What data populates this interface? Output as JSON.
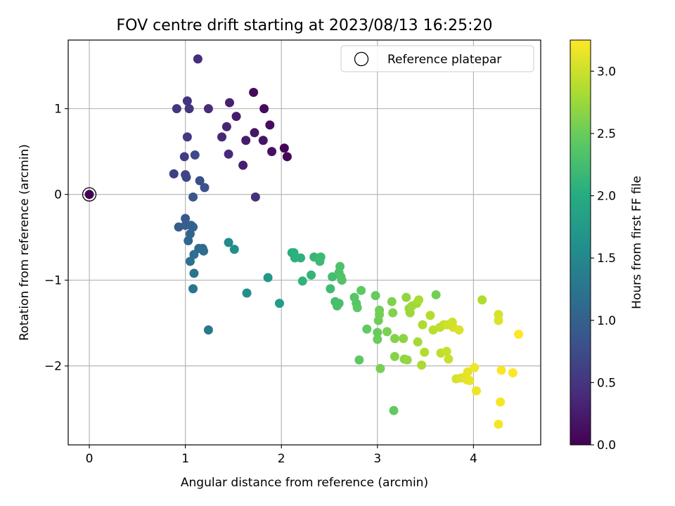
{
  "chart_data": {
    "type": "scatter",
    "title": "FOV centre drift starting at 2023/08/13 16:25:20",
    "xlabel": "Angular distance from reference (arcmin)",
    "ylabel": "Rotation from reference (arcmin)",
    "xlim": [
      -0.22,
      4.7
    ],
    "ylim": [
      -2.92,
      1.8
    ],
    "xticks": [
      0,
      1,
      2,
      3,
      4
    ],
    "yticks": [
      -2,
      -1,
      0,
      1
    ],
    "xtick_labels": [
      "0",
      "1",
      "2",
      "3",
      "4"
    ],
    "ytick_labels": [
      "−2",
      "−1",
      "0",
      "1"
    ],
    "grid": true,
    "legend": {
      "position": "top-right",
      "entries": [
        "Reference platepar"
      ]
    },
    "colorbar": {
      "label": "Hours from first FF file",
      "range": [
        0.0,
        3.25
      ],
      "ticks": [
        0.0,
        0.5,
        1.0,
        1.5,
        2.0,
        2.5,
        3.0
      ],
      "tick_labels": [
        "0.0",
        "0.5",
        "1.0",
        "1.5",
        "2.0",
        "2.5",
        "3.0"
      ],
      "colormap": "viridis"
    },
    "reference_point": {
      "x": 0,
      "y": 0,
      "c": 0.0
    },
    "points": [
      {
        "x": 2.03,
        "y": 0.54,
        "c": 0.03
      },
      {
        "x": 2.06,
        "y": 0.44,
        "c": 0.05
      },
      {
        "x": 1.71,
        "y": 1.19,
        "c": 0.08
      },
      {
        "x": 1.82,
        "y": 1.0,
        "c": 0.1
      },
      {
        "x": 1.88,
        "y": 0.81,
        "c": 0.12
      },
      {
        "x": 1.9,
        "y": 0.5,
        "c": 0.15
      },
      {
        "x": 1.81,
        "y": 0.63,
        "c": 0.18
      },
      {
        "x": 1.72,
        "y": 0.72,
        "c": 0.2
      },
      {
        "x": 1.53,
        "y": 0.91,
        "c": 0.22
      },
      {
        "x": 1.63,
        "y": 0.63,
        "c": 0.25
      },
      {
        "x": 1.6,
        "y": 0.34,
        "c": 0.28
      },
      {
        "x": 1.46,
        "y": 1.07,
        "c": 0.3
      },
      {
        "x": 1.43,
        "y": 0.79,
        "c": 0.33
      },
      {
        "x": 1.38,
        "y": 0.67,
        "c": 0.35
      },
      {
        "x": 1.45,
        "y": 0.47,
        "c": 0.38
      },
      {
        "x": 1.24,
        "y": 1.0,
        "c": 0.4
      },
      {
        "x": 1.13,
        "y": 1.58,
        "c": 0.42
      },
      {
        "x": 1.73,
        "y": -0.03,
        "c": 0.45
      },
      {
        "x": 1.02,
        "y": 1.09,
        "c": 0.48
      },
      {
        "x": 1.04,
        "y": 1.0,
        "c": 0.5
      },
      {
        "x": 0.91,
        "y": 1.0,
        "c": 0.52
      },
      {
        "x": 1.02,
        "y": 0.67,
        "c": 0.55
      },
      {
        "x": 0.99,
        "y": 0.44,
        "c": 0.58
      },
      {
        "x": 0.88,
        "y": 0.24,
        "c": 0.6
      },
      {
        "x": 1.0,
        "y": 0.23,
        "c": 0.65
      },
      {
        "x": 1.01,
        "y": 0.2,
        "c": 0.68
      },
      {
        "x": 1.1,
        "y": 0.46,
        "c": 0.72
      },
      {
        "x": 1.15,
        "y": 0.16,
        "c": 0.78
      },
      {
        "x": 1.2,
        "y": 0.08,
        "c": 0.82
      },
      {
        "x": 1.08,
        "y": -0.03,
        "c": 0.88
      },
      {
        "x": 1.0,
        "y": -0.28,
        "c": 0.92
      },
      {
        "x": 0.93,
        "y": -0.38,
        "c": 0.95
      },
      {
        "x": 1.0,
        "y": -0.36,
        "c": 0.98
      },
      {
        "x": 1.06,
        "y": -0.36,
        "c": 1.0
      },
      {
        "x": 1.08,
        "y": -0.38,
        "c": 1.02
      },
      {
        "x": 1.05,
        "y": -0.46,
        "c": 1.05
      },
      {
        "x": 1.03,
        "y": -0.54,
        "c": 1.07
      },
      {
        "x": 1.14,
        "y": -0.63,
        "c": 1.1
      },
      {
        "x": 1.18,
        "y": -0.63,
        "c": 1.12
      },
      {
        "x": 1.19,
        "y": -0.66,
        "c": 1.15
      },
      {
        "x": 1.09,
        "y": -0.7,
        "c": 1.18
      },
      {
        "x": 1.05,
        "y": -0.78,
        "c": 1.2
      },
      {
        "x": 1.09,
        "y": -0.92,
        "c": 1.23
      },
      {
        "x": 1.08,
        "y": -1.1,
        "c": 1.25
      },
      {
        "x": 1.24,
        "y": -1.58,
        "c": 1.3
      },
      {
        "x": 1.45,
        "y": -0.56,
        "c": 1.55
      },
      {
        "x": 1.51,
        "y": -0.64,
        "c": 1.58
      },
      {
        "x": 1.64,
        "y": -1.15,
        "c": 1.6
      },
      {
        "x": 1.86,
        "y": -0.97,
        "c": 1.72
      },
      {
        "x": 1.98,
        "y": -1.27,
        "c": 1.8
      },
      {
        "x": 2.11,
        "y": -0.68,
        "c": 2.02
      },
      {
        "x": 2.13,
        "y": -0.68,
        "c": 2.05
      },
      {
        "x": 2.14,
        "y": -0.74,
        "c": 2.07
      },
      {
        "x": 2.2,
        "y": -0.74,
        "c": 2.08
      },
      {
        "x": 2.22,
        "y": -1.01,
        "c": 2.1
      },
      {
        "x": 2.31,
        "y": -0.94,
        "c": 2.12
      },
      {
        "x": 2.34,
        "y": -0.73,
        "c": 2.15
      },
      {
        "x": 2.39,
        "y": -0.75,
        "c": 2.17
      },
      {
        "x": 2.41,
        "y": -0.73,
        "c": 2.18
      },
      {
        "x": 2.4,
        "y": -0.78,
        "c": 2.2
      },
      {
        "x": 2.51,
        "y": -1.1,
        "c": 2.22
      },
      {
        "x": 2.53,
        "y": -0.96,
        "c": 2.24
      },
      {
        "x": 2.56,
        "y": -1.25,
        "c": 2.25
      },
      {
        "x": 2.58,
        "y": -1.3,
        "c": 2.27
      },
      {
        "x": 2.6,
        "y": -1.27,
        "c": 2.28
      },
      {
        "x": 2.6,
        "y": -0.91,
        "c": 2.3
      },
      {
        "x": 2.61,
        "y": -0.84,
        "c": 2.32
      },
      {
        "x": 2.62,
        "y": -0.96,
        "c": 2.33
      },
      {
        "x": 2.63,
        "y": -1.0,
        "c": 2.35
      },
      {
        "x": 2.76,
        "y": -1.2,
        "c": 2.37
      },
      {
        "x": 2.78,
        "y": -1.27,
        "c": 2.38
      },
      {
        "x": 2.79,
        "y": -1.32,
        "c": 2.4
      },
      {
        "x": 2.81,
        "y": -1.93,
        "c": 2.42
      },
      {
        "x": 2.83,
        "y": -1.12,
        "c": 2.43
      },
      {
        "x": 2.89,
        "y": -1.57,
        "c": 2.45
      },
      {
        "x": 2.98,
        "y": -1.18,
        "c": 2.47
      },
      {
        "x": 3.0,
        "y": -1.61,
        "c": 2.48
      },
      {
        "x": 3.0,
        "y": -1.69,
        "c": 2.5
      },
      {
        "x": 3.01,
        "y": -1.47,
        "c": 2.52
      },
      {
        "x": 3.02,
        "y": -1.35,
        "c": 2.53
      },
      {
        "x": 3.02,
        "y": -1.4,
        "c": 2.55
      },
      {
        "x": 3.03,
        "y": -2.03,
        "c": 2.57
      },
      {
        "x": 3.1,
        "y": -1.6,
        "c": 2.58
      },
      {
        "x": 3.15,
        "y": -1.25,
        "c": 2.6
      },
      {
        "x": 3.16,
        "y": -1.38,
        "c": 2.62
      },
      {
        "x": 3.18,
        "y": -1.68,
        "c": 2.63
      },
      {
        "x": 3.18,
        "y": -1.89,
        "c": 2.65
      },
      {
        "x": 3.17,
        "y": -2.52,
        "c": 2.45
      },
      {
        "x": 3.27,
        "y": -1.68,
        "c": 2.67
      },
      {
        "x": 3.28,
        "y": -1.92,
        "c": 2.68
      },
      {
        "x": 3.3,
        "y": -1.2,
        "c": 2.7
      },
      {
        "x": 3.31,
        "y": -1.93,
        "c": 2.72
      },
      {
        "x": 3.33,
        "y": -1.33,
        "c": 2.73
      },
      {
        "x": 3.34,
        "y": -1.38,
        "c": 2.75
      },
      {
        "x": 3.36,
        "y": -1.3,
        "c": 2.77
      },
      {
        "x": 3.41,
        "y": -1.27,
        "c": 2.78
      },
      {
        "x": 3.42,
        "y": -1.72,
        "c": 2.8
      },
      {
        "x": 3.43,
        "y": -1.23,
        "c": 2.82
      },
      {
        "x": 3.46,
        "y": -1.99,
        "c": 2.83
      },
      {
        "x": 3.47,
        "y": -1.52,
        "c": 2.85
      },
      {
        "x": 3.49,
        "y": -1.84,
        "c": 2.87
      },
      {
        "x": 3.55,
        "y": -1.41,
        "c": 2.88
      },
      {
        "x": 3.58,
        "y": -1.58,
        "c": 2.9
      },
      {
        "x": 3.61,
        "y": -1.17,
        "c": 2.55
      },
      {
        "x": 3.65,
        "y": -1.55,
        "c": 2.92
      },
      {
        "x": 3.66,
        "y": -1.85,
        "c": 2.93
      },
      {
        "x": 3.69,
        "y": -1.52,
        "c": 2.95
      },
      {
        "x": 3.72,
        "y": -1.83,
        "c": 2.97
      },
      {
        "x": 3.74,
        "y": -1.92,
        "c": 2.98
      },
      {
        "x": 3.73,
        "y": -1.52,
        "c": 3.0
      },
      {
        "x": 3.78,
        "y": -1.49,
        "c": 3.02
      },
      {
        "x": 3.79,
        "y": -1.55,
        "c": 3.03
      },
      {
        "x": 3.82,
        "y": -2.15,
        "c": 3.05
      },
      {
        "x": 3.85,
        "y": -1.58,
        "c": 3.07
      },
      {
        "x": 3.87,
        "y": -2.14,
        "c": 3.08
      },
      {
        "x": 3.91,
        "y": -2.13,
        "c": 3.1
      },
      {
        "x": 3.93,
        "y": -2.16,
        "c": 3.12
      },
      {
        "x": 3.94,
        "y": -2.07,
        "c": 3.13
      },
      {
        "x": 3.96,
        "y": -2.17,
        "c": 3.15
      },
      {
        "x": 4.01,
        "y": -2.02,
        "c": 3.17
      },
      {
        "x": 4.03,
        "y": -2.29,
        "c": 3.18
      },
      {
        "x": 4.09,
        "y": -1.23,
        "c": 2.85
      },
      {
        "x": 4.26,
        "y": -1.4,
        "c": 3.05
      },
      {
        "x": 4.26,
        "y": -1.47,
        "c": 3.08
      },
      {
        "x": 4.26,
        "y": -2.68,
        "c": 3.2
      },
      {
        "x": 4.28,
        "y": -2.42,
        "c": 3.22
      },
      {
        "x": 4.29,
        "y": -2.05,
        "c": 3.23
      },
      {
        "x": 4.41,
        "y": -2.08,
        "c": 3.24
      },
      {
        "x": 4.47,
        "y": -1.63,
        "c": 3.25
      }
    ]
  }
}
